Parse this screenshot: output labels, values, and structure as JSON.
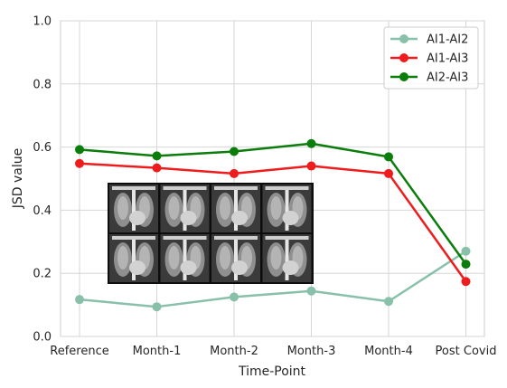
{
  "chart_data": {
    "type": "line",
    "xlabel": "Time-Point",
    "ylabel": "JSD value",
    "categories": [
      "Reference",
      "Month-1",
      "Month-2",
      "Month-3",
      "Month-4",
      "Post Covid"
    ],
    "ylim": [
      0.0,
      1.0
    ],
    "yticks": [
      "0.0",
      "0.2",
      "0.4",
      "0.6",
      "0.8",
      "1.0"
    ],
    "grid": true,
    "legend_position": "top-right",
    "series": [
      {
        "name": "AI1-AI2",
        "color": "#88c0aa",
        "values": [
          0.117,
          0.094,
          0.125,
          0.144,
          0.111,
          0.27
        ]
      },
      {
        "name": "AI1-AI3",
        "color": "#ee1c1c",
        "values": [
          0.548,
          0.534,
          0.516,
          0.54,
          0.516,
          0.174
        ]
      },
      {
        "name": "AI2-AI3",
        "color": "#0a7d0a",
        "values": [
          0.592,
          0.572,
          0.586,
          0.611,
          0.569,
          0.229
        ]
      }
    ]
  }
}
